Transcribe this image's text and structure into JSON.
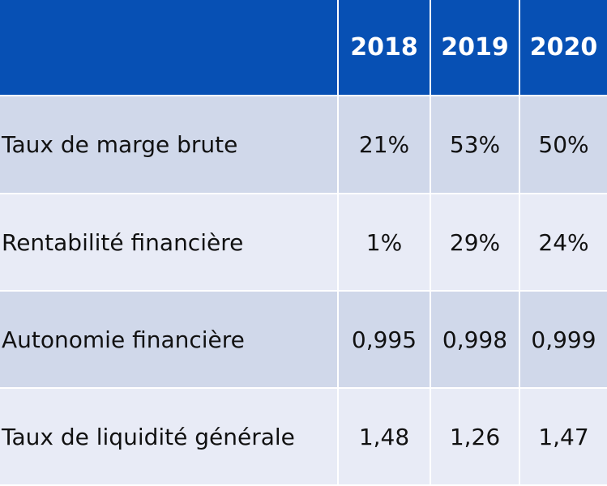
{
  "table": {
    "corner": "",
    "years": [
      "2018",
      "2019",
      "2020"
    ],
    "rows": [
      {
        "label": "Taux de marge brute",
        "values": [
          "21%",
          "53%",
          "50%"
        ]
      },
      {
        "label": "Rentabilité financière",
        "values": [
          "1%",
          "29%",
          "24%"
        ]
      },
      {
        "label": "Autonomie financière",
        "values": [
          "0,995",
          "0,998",
          "0,999"
        ]
      },
      {
        "label": "Taux de liquidité générale",
        "values": [
          "1,48",
          "1,26",
          "1,47"
        ]
      }
    ]
  },
  "colors": {
    "header_bg": "#0750b4",
    "row_dark": "#d0d8ea",
    "row_light": "#e8ebf6"
  }
}
